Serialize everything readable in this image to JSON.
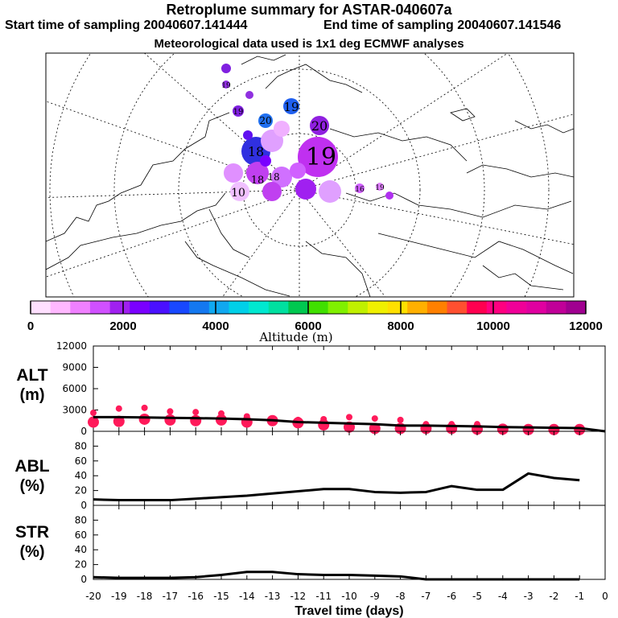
{
  "header": {
    "title": "Retroplume summary for ASTAR-040607a",
    "start_label": "Start time of sampling 20040607.141444",
    "end_label": "End time of sampling 20040607.141546",
    "met_label": "Meteorological data used is 1x1 deg ECMWF analyses"
  },
  "colorbar": {
    "label": "Altitude (m)",
    "ticks": [
      "0",
      "2000",
      "4000",
      "6000",
      "8000",
      "10000",
      "12000"
    ],
    "colors": [
      "#ffe0ff",
      "#ffb8ff",
      "#f080ff",
      "#d050ff",
      "#a020f0",
      "#7a00ff",
      "#4a10ff",
      "#1848ff",
      "#1478f0",
      "#10a8f0",
      "#00d0e8",
      "#00e8d0",
      "#00e0a0",
      "#00c850",
      "#40e000",
      "#80f000",
      "#c0f000",
      "#f0f000",
      "#ffe000",
      "#ffb000",
      "#ff8000",
      "#ff5030",
      "#ff0050",
      "#ff0080",
      "#f00098",
      "#e000a0",
      "#c00098",
      "#a00090"
    ]
  },
  "map": {
    "plume_labels": [
      "19",
      "20",
      "19",
      "20",
      "18",
      "19",
      "10",
      "18",
      "19",
      "18",
      "19",
      "16"
    ]
  },
  "chart_data": [
    {
      "type": "line",
      "name": "ALT",
      "ylabel": "ALT",
      "yunit": "(m)",
      "ylim": [
        0,
        12000
      ],
      "yticks": [
        "12000",
        "9000",
        "6000",
        "3000",
        "0"
      ],
      "x": [
        -20,
        -19,
        -18,
        -17,
        -16,
        -15,
        -14,
        -13,
        -12,
        -11,
        -10,
        -9,
        -8,
        -7,
        -6,
        -5,
        -4,
        -3,
        -2,
        -1,
        0
      ],
      "values": [
        2000,
        2000,
        1950,
        1900,
        1850,
        1800,
        1700,
        1550,
        1300,
        1200,
        1100,
        1000,
        800,
        800,
        750,
        700,
        600,
        550,
        500,
        450,
        0
      ],
      "scatter": [
        {
          "x": -20,
          "y": [
            1300,
            2600
          ]
        },
        {
          "x": -19,
          "y": [
            1400,
            3200
          ]
        },
        {
          "x": -18,
          "y": [
            1700,
            3300
          ]
        },
        {
          "x": -17,
          "y": [
            1600,
            2800
          ]
        },
        {
          "x": -16,
          "y": [
            1500,
            2700
          ]
        },
        {
          "x": -15,
          "y": [
            1600,
            2500
          ]
        },
        {
          "x": -14,
          "y": [
            1300,
            2100
          ]
        },
        {
          "x": -13,
          "y": [
            1500,
            1800
          ]
        },
        {
          "x": -12,
          "y": [
            1200,
            1600
          ]
        },
        {
          "x": -11,
          "y": [
            900,
            1700
          ]
        },
        {
          "x": -10,
          "y": [
            600,
            2000
          ]
        },
        {
          "x": -9,
          "y": [
            400,
            1800
          ]
        },
        {
          "x": -8,
          "y": [
            400,
            1600
          ]
        },
        {
          "x": -7,
          "y": [
            400,
            1000
          ]
        },
        {
          "x": -6,
          "y": [
            400,
            1000
          ]
        },
        {
          "x": -5,
          "y": [
            300,
            1000
          ]
        },
        {
          "x": -4,
          "y": [
            300
          ]
        },
        {
          "x": -3,
          "y": [
            250
          ]
        },
        {
          "x": -2,
          "y": [
            250
          ]
        },
        {
          "x": -1,
          "y": [
            250
          ]
        }
      ]
    },
    {
      "type": "line",
      "name": "ABL",
      "ylabel": "ABL",
      "yunit": "(%)",
      "ylim": [
        0,
        100
      ],
      "yticks": [
        "80",
        "60",
        "40",
        "20",
        "0"
      ],
      "x": [
        -20,
        -19,
        -18,
        -17,
        -16,
        -15,
        -14,
        -13,
        -12,
        -11,
        -10,
        -9,
        -8,
        -7,
        -6,
        -5,
        -4,
        -3,
        -2,
        -1
      ],
      "values": [
        8,
        7,
        7,
        7,
        9,
        11,
        13,
        16,
        19,
        22,
        22,
        18,
        17,
        18,
        26,
        21,
        21,
        43,
        37,
        34
      ]
    },
    {
      "type": "line",
      "name": "STR",
      "ylabel": "STR",
      "yunit": "(%)",
      "ylim": [
        0,
        100
      ],
      "yticks": [
        "80",
        "60",
        "40",
        "20",
        "0"
      ],
      "x": [
        -20,
        -19,
        -18,
        -17,
        -16,
        -15,
        -14,
        -13,
        -12,
        -11,
        -10,
        -9,
        -8,
        -7,
        -6,
        -5,
        -4,
        -3,
        -2,
        -1
      ],
      "values": [
        3,
        2,
        2,
        2,
        3,
        6,
        10,
        10,
        7,
        6,
        6,
        5,
        4,
        0,
        0,
        0,
        0,
        0,
        0,
        0
      ],
      "xlabel": "Travel time (days)",
      "xticks": [
        "-20",
        "-19",
        "-18",
        "-17",
        "-16",
        "-15",
        "-14",
        "-13",
        "-12",
        "-11",
        "-10",
        "-9",
        "-8",
        "-7",
        "-6",
        "-5",
        "-4",
        "-3",
        "-2",
        "-1",
        "0"
      ]
    }
  ]
}
